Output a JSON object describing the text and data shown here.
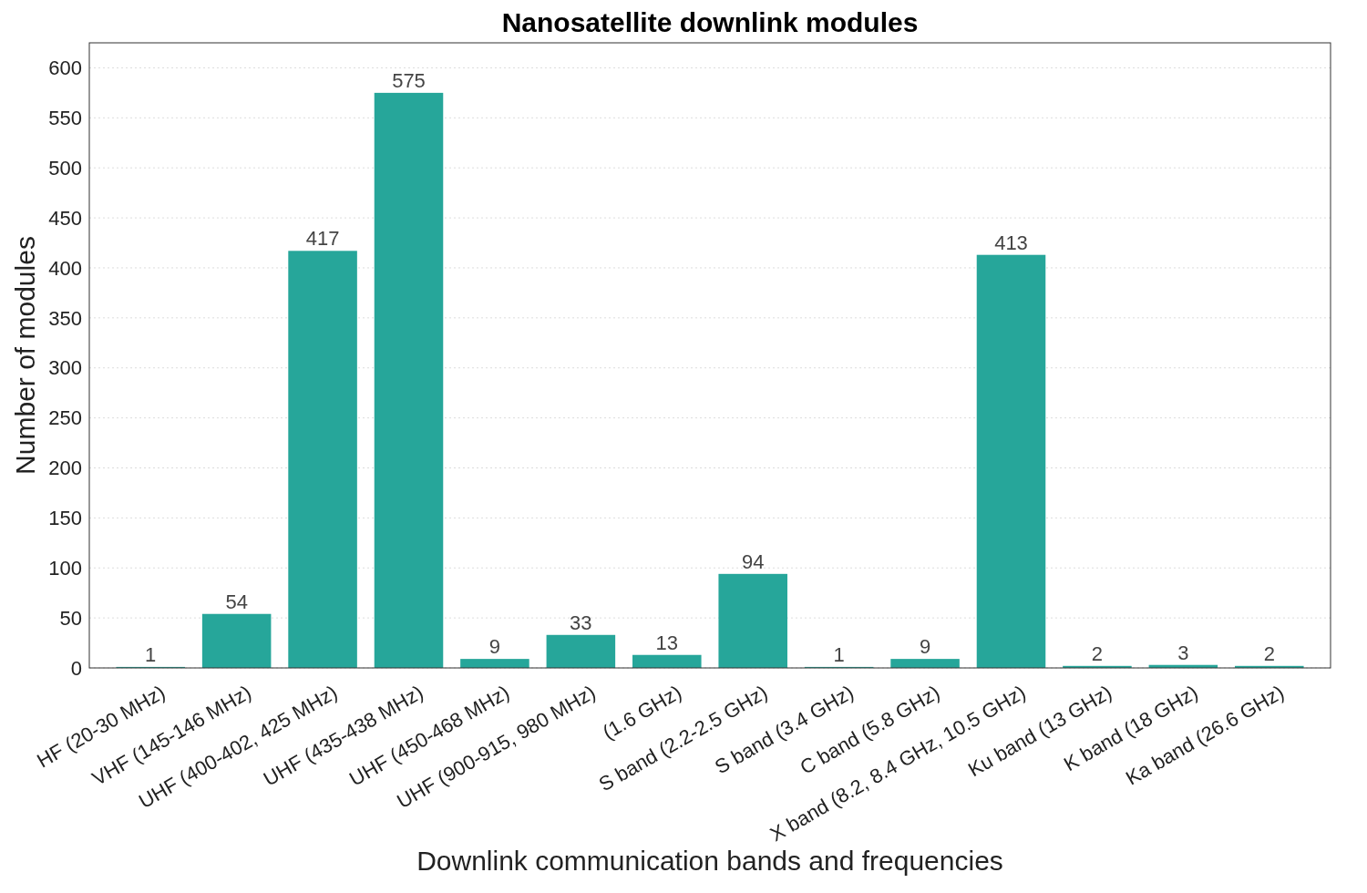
{
  "chart_data": {
    "type": "bar",
    "title": "Nanosatellite downlink modules",
    "xlabel": "Downlink communication bands and frequencies",
    "ylabel": "Number of modules",
    "categories": [
      "HF (20-30 MHz)",
      "VHF (145-146 MHz)",
      "UHF (400-402, 425 MHz)",
      "UHF (435-438 MHz)",
      "UHF (450-468 MHz)",
      "UHF (900-915, 980 MHz)",
      "(1.6 GHz)",
      "S band (2.2-2.5 GHz)",
      "S band (3.4 GHz)",
      "C band (5.8 GHz)",
      "X band (8.2, 8.4 GHz, 10.5 GHz)",
      "Ku band (13 GHz)",
      "K band (18 GHz)",
      "Ka band (26.6 GHz)"
    ],
    "values": [
      1,
      54,
      417,
      575,
      9,
      33,
      13,
      94,
      1,
      9,
      413,
      2,
      3,
      2
    ],
    "color": "#26a69a",
    "ylim": [
      0,
      625
    ],
    "yticks": [
      0,
      50,
      100,
      150,
      200,
      250,
      300,
      350,
      400,
      450,
      500,
      550,
      600
    ],
    "grid": "y",
    "data_labels": true
  }
}
